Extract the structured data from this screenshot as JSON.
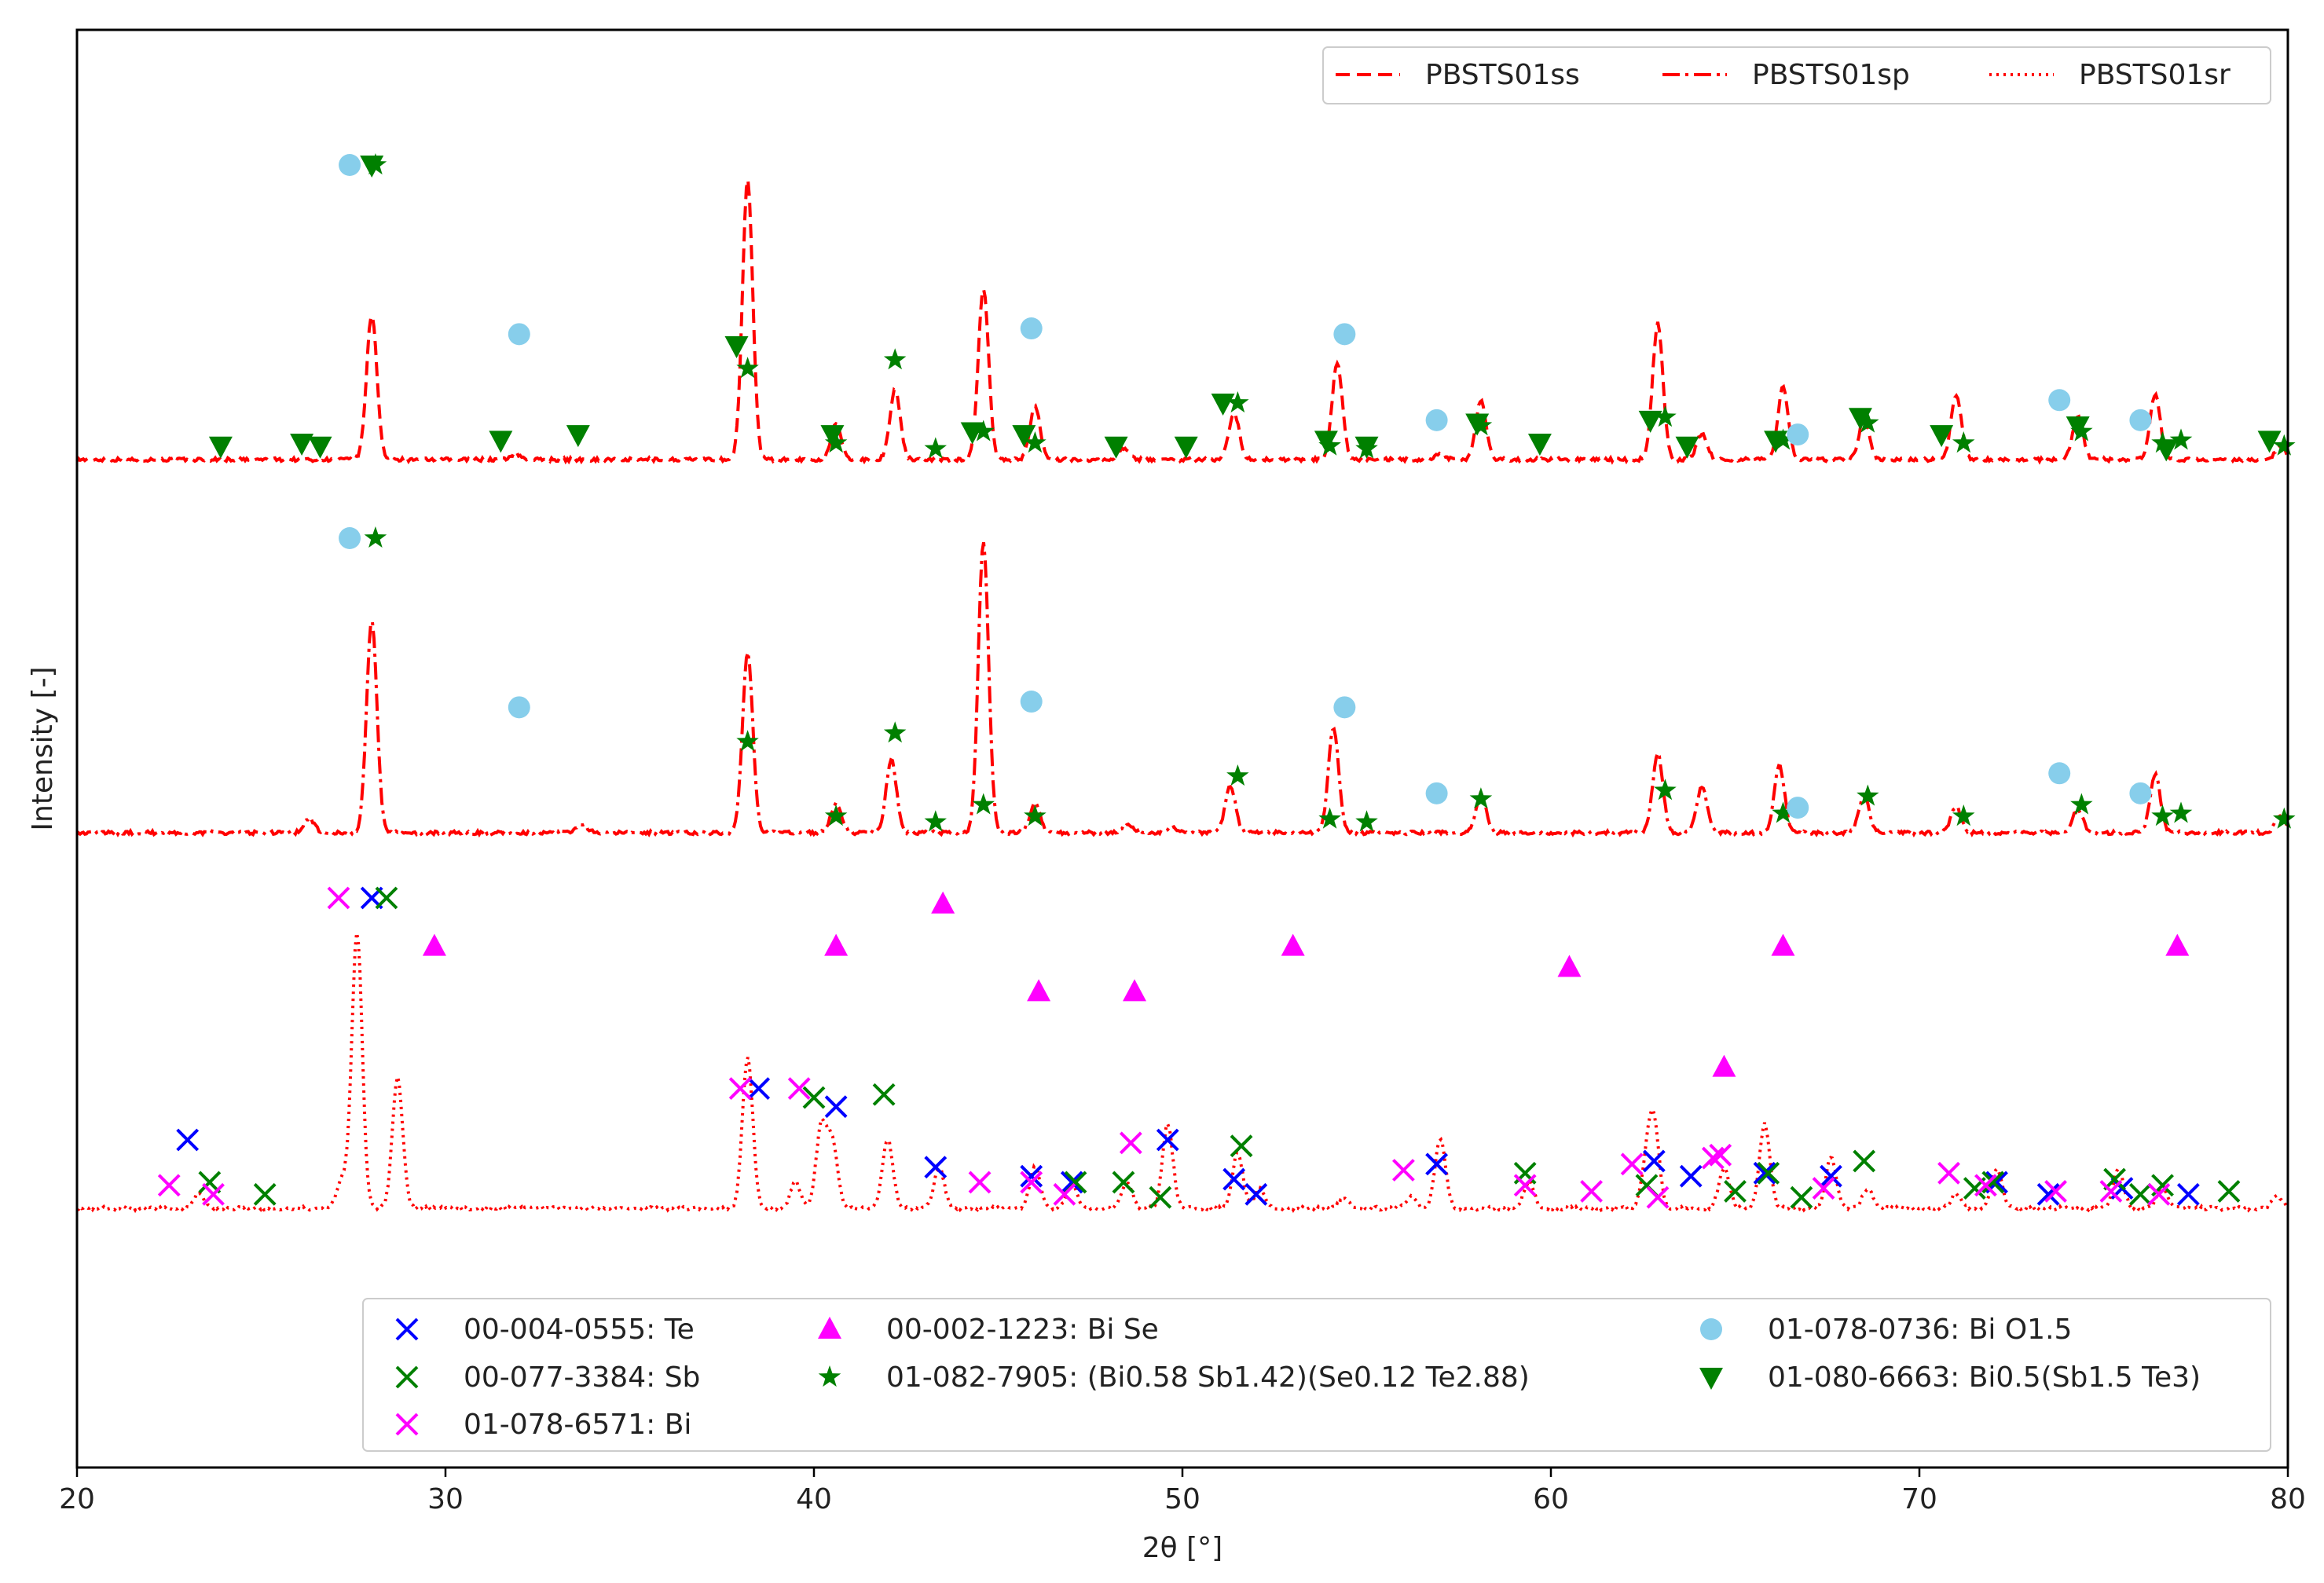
{
  "chart_data": {
    "type": "line",
    "xlabel": "2θ [°]",
    "ylabel": "Intensity [-]",
    "xlim": [
      20,
      80
    ],
    "x_ticks": [
      "20",
      "30",
      "40",
      "50",
      "60",
      "70",
      "80"
    ],
    "y_ticks_shown": false,
    "line_color": "#ff0000",
    "grid": false,
    "series_legend_position": "top-right",
    "marker_legend_position": "bottom",
    "series": [
      {
        "name": "PBSTS01ss",
        "style": "dashed",
        "peaks": [
          {
            "x": 28.0,
            "h": 0.5
          },
          {
            "x": 31.9,
            "h": 0.02
          },
          {
            "x": 38.2,
            "h": 0.96
          },
          {
            "x": 40.6,
            "h": 0.12
          },
          {
            "x": 42.2,
            "h": 0.24
          },
          {
            "x": 44.6,
            "h": 0.59
          },
          {
            "x": 46.0,
            "h": 0.18
          },
          {
            "x": 48.4,
            "h": 0.04
          },
          {
            "x": 51.4,
            "h": 0.16
          },
          {
            "x": 54.2,
            "h": 0.33
          },
          {
            "x": 57.0,
            "h": 0.02
          },
          {
            "x": 58.1,
            "h": 0.2
          },
          {
            "x": 62.9,
            "h": 0.47
          },
          {
            "x": 64.1,
            "h": 0.09
          },
          {
            "x": 66.3,
            "h": 0.25
          },
          {
            "x": 68.5,
            "h": 0.14
          },
          {
            "x": 71.0,
            "h": 0.22
          },
          {
            "x": 74.3,
            "h": 0.15
          },
          {
            "x": 76.4,
            "h": 0.22
          },
          {
            "x": 79.8,
            "h": 0.05
          }
        ]
      },
      {
        "name": "PBSTS01sp",
        "style": "dashdot",
        "peaks": [
          {
            "x": 26.3,
            "h": 0.05
          },
          {
            "x": 28.0,
            "h": 0.73
          },
          {
            "x": 33.7,
            "h": 0.03
          },
          {
            "x": 38.2,
            "h": 0.62
          },
          {
            "x": 40.6,
            "h": 0.1
          },
          {
            "x": 42.1,
            "h": 0.25
          },
          {
            "x": 44.6,
            "h": 1.0
          },
          {
            "x": 46.0,
            "h": 0.1
          },
          {
            "x": 48.5,
            "h": 0.03
          },
          {
            "x": 49.7,
            "h": 0.02
          },
          {
            "x": 51.3,
            "h": 0.16
          },
          {
            "x": 54.1,
            "h": 0.36
          },
          {
            "x": 58.1,
            "h": 0.13
          },
          {
            "x": 62.9,
            "h": 0.27
          },
          {
            "x": 64.1,
            "h": 0.16
          },
          {
            "x": 66.2,
            "h": 0.23
          },
          {
            "x": 68.5,
            "h": 0.13
          },
          {
            "x": 71.0,
            "h": 0.09
          },
          {
            "x": 74.3,
            "h": 0.08
          },
          {
            "x": 76.4,
            "h": 0.2
          },
          {
            "x": 79.8,
            "h": 0.06
          }
        ]
      },
      {
        "name": "PBSTS01sr",
        "style": "dotted",
        "peaks": [
          {
            "x": 23.3,
            "h": 0.05
          },
          {
            "x": 27.2,
            "h": 0.1
          },
          {
            "x": 27.6,
            "h": 0.95
          },
          {
            "x": 28.7,
            "h": 0.45
          },
          {
            "x": 38.2,
            "h": 0.52
          },
          {
            "x": 39.5,
            "h": 0.09
          },
          {
            "x": 40.2,
            "h": 0.28
          },
          {
            "x": 40.5,
            "h": 0.22
          },
          {
            "x": 42.0,
            "h": 0.24
          },
          {
            "x": 43.4,
            "h": 0.14
          },
          {
            "x": 46.0,
            "h": 0.14
          },
          {
            "x": 47.0,
            "h": 0.08
          },
          {
            "x": 48.5,
            "h": 0.09
          },
          {
            "x": 49.6,
            "h": 0.29
          },
          {
            "x": 51.5,
            "h": 0.19
          },
          {
            "x": 52.1,
            "h": 0.07
          },
          {
            "x": 54.4,
            "h": 0.03
          },
          {
            "x": 56.2,
            "h": 0.04
          },
          {
            "x": 57.0,
            "h": 0.24
          },
          {
            "x": 59.4,
            "h": 0.09
          },
          {
            "x": 62.6,
            "h": 0.14
          },
          {
            "x": 62.8,
            "h": 0.28
          },
          {
            "x": 64.7,
            "h": 0.14
          },
          {
            "x": 65.8,
            "h": 0.29
          },
          {
            "x": 67.6,
            "h": 0.18
          },
          {
            "x": 68.6,
            "h": 0.07
          },
          {
            "x": 71.0,
            "h": 0.05
          },
          {
            "x": 72.1,
            "h": 0.14
          },
          {
            "x": 75.4,
            "h": 0.14
          },
          {
            "x": 76.6,
            "h": 0.07
          },
          {
            "x": 79.7,
            "h": 0.04
          }
        ]
      }
    ],
    "reference_patterns": [
      {
        "name": "00-004-0555: Te",
        "marker": "x",
        "color": "#0000ff",
        "points": [
          [
            23.0,
            0.2
          ],
          [
            28.0,
            1.0
          ],
          [
            38.5,
            0.37
          ],
          [
            40.6,
            0.31
          ],
          [
            43.3,
            0.11
          ],
          [
            45.9,
            0.08
          ],
          [
            47.0,
            0.06
          ],
          [
            49.6,
            0.2
          ],
          [
            51.4,
            0.07
          ],
          [
            52.0,
            0.02
          ],
          [
            56.9,
            0.12
          ],
          [
            62.8,
            0.13
          ],
          [
            63.8,
            0.08
          ],
          [
            65.8,
            0.09
          ],
          [
            67.6,
            0.08
          ],
          [
            72.1,
            0.06
          ],
          [
            73.5,
            0.02
          ],
          [
            75.5,
            0.04
          ],
          [
            77.3,
            0.02
          ]
        ]
      },
      {
        "name": "00-077-3384: Sb",
        "marker": "x",
        "color": "#008000",
        "points": [
          [
            23.6,
            0.06
          ],
          [
            25.1,
            0.02
          ],
          [
            28.4,
            1.0
          ],
          [
            40.0,
            0.34
          ],
          [
            41.9,
            0.35
          ],
          [
            47.1,
            0.06
          ],
          [
            48.4,
            0.06
          ],
          [
            49.4,
            0.01
          ],
          [
            51.6,
            0.18
          ],
          [
            59.3,
            0.09
          ],
          [
            62.6,
            0.05
          ],
          [
            65.0,
            0.03
          ],
          [
            65.9,
            0.09
          ],
          [
            66.8,
            0.01
          ],
          [
            68.5,
            0.13
          ],
          [
            71.5,
            0.04
          ],
          [
            72.0,
            0.06
          ],
          [
            75.3,
            0.07
          ],
          [
            76.0,
            0.02
          ],
          [
            76.6,
            0.05
          ],
          [
            78.4,
            0.03
          ]
        ]
      },
      {
        "name": "01-078-6571: Bi",
        "marker": "x",
        "color": "#ff00ff",
        "points": [
          [
            22.5,
            0.05
          ],
          [
            23.7,
            0.02
          ],
          [
            27.1,
            1.0
          ],
          [
            38.0,
            0.37
          ],
          [
            39.6,
            0.37
          ],
          [
            44.5,
            0.06
          ],
          [
            45.9,
            0.06
          ],
          [
            46.8,
            0.02
          ],
          [
            48.6,
            0.19
          ],
          [
            56.0,
            0.1
          ],
          [
            59.3,
            0.05
          ],
          [
            61.1,
            0.03
          ],
          [
            62.2,
            0.12
          ],
          [
            62.9,
            0.01
          ],
          [
            64.4,
            0.14
          ],
          [
            64.6,
            0.15
          ],
          [
            67.4,
            0.04
          ],
          [
            70.8,
            0.09
          ],
          [
            71.8,
            0.05
          ],
          [
            73.7,
            0.03
          ],
          [
            75.2,
            0.03
          ],
          [
            76.5,
            0.02
          ]
        ]
      },
      {
        "name": "00-002-1223: Bi Se",
        "marker": "triangle-up",
        "color": "#ff00ff",
        "points": [
          [
            29.7,
            0.84
          ],
          [
            40.6,
            0.84
          ],
          [
            43.5,
            0.98
          ],
          [
            46.1,
            0.69
          ],
          [
            48.7,
            0.69
          ],
          [
            53.0,
            0.84
          ],
          [
            60.5,
            0.77
          ],
          [
            64.7,
            0.44
          ],
          [
            66.3,
            0.84
          ],
          [
            77.0,
            0.84
          ]
        ]
      },
      {
        "name": "01-082-7905: (Bi0.58 Sb1.42)(Se0.12 Te2.88)",
        "marker": "star",
        "color": "#008000",
        "points": [
          [
            28.1,
            1.0
          ],
          [
            38.2,
            0.29
          ],
          [
            40.6,
            0.03
          ],
          [
            42.2,
            0.32
          ],
          [
            43.3,
            0.01
          ],
          [
            44.6,
            0.07
          ],
          [
            46.0,
            0.03
          ],
          [
            51.5,
            0.17
          ],
          [
            54.0,
            0.02
          ],
          [
            55.0,
            0.01
          ],
          [
            58.1,
            0.09
          ],
          [
            63.1,
            0.12
          ],
          [
            66.3,
            0.04
          ],
          [
            68.6,
            0.1
          ],
          [
            71.2,
            0.03
          ],
          [
            74.4,
            0.07
          ],
          [
            76.6,
            0.03
          ],
          [
            77.1,
            0.04
          ],
          [
            79.9,
            0.02
          ]
        ]
      },
      {
        "name": "01-078-0736: Bi O1.5",
        "marker": "circle",
        "color": "#87ceeb",
        "points": [
          [
            27.4,
            1.0
          ],
          [
            32.0,
            0.41
          ],
          [
            45.9,
            0.43
          ],
          [
            54.4,
            0.41
          ],
          [
            56.9,
            0.11
          ],
          [
            66.7,
            0.06
          ],
          [
            73.8,
            0.18
          ],
          [
            76.0,
            0.11
          ]
        ]
      },
      {
        "name": "01-080-6663: Bi0.5(Sb1.5 Te3)",
        "marker": "triangle-down",
        "color": "#008000",
        "points": [
          [
            23.9,
            0.02
          ],
          [
            26.1,
            0.03
          ],
          [
            26.6,
            0.02
          ],
          [
            28.0,
            1.0
          ],
          [
            31.5,
            0.04
          ],
          [
            33.6,
            0.06
          ],
          [
            37.9,
            0.37
          ],
          [
            40.5,
            0.06
          ],
          [
            44.3,
            0.07
          ],
          [
            45.7,
            0.06
          ],
          [
            48.2,
            0.02
          ],
          [
            50.1,
            0.02
          ],
          [
            51.1,
            0.17
          ],
          [
            53.9,
            0.04
          ],
          [
            55.0,
            0.02
          ],
          [
            58.0,
            0.1
          ],
          [
            59.7,
            0.03
          ],
          [
            62.7,
            0.11
          ],
          [
            63.7,
            0.02
          ],
          [
            66.1,
            0.04
          ],
          [
            68.4,
            0.12
          ],
          [
            70.6,
            0.06
          ],
          [
            74.3,
            0.09
          ],
          [
            76.7,
            0.01
          ],
          [
            79.5,
            0.04
          ]
        ]
      }
    ]
  }
}
